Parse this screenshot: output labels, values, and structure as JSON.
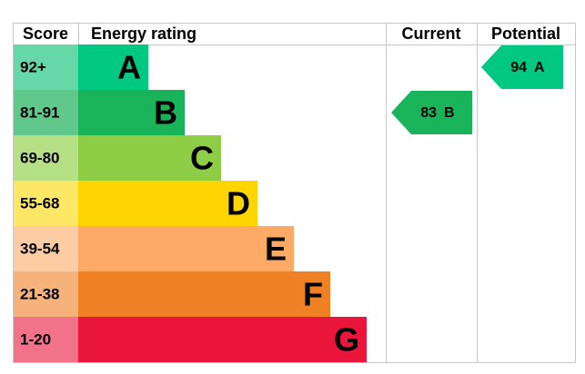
{
  "header": {
    "score": "Score",
    "rating": "Energy rating",
    "current": "Current",
    "potential": "Potential"
  },
  "bands": [
    {
      "score": "92+",
      "letter": "A",
      "color": "#00c781",
      "score_color": "#66d8a8"
    },
    {
      "score": "81-91",
      "letter": "B",
      "color": "#19b459",
      "score_color": "#5fc88a"
    },
    {
      "score": "69-80",
      "letter": "C",
      "color": "#8dce46",
      "score_color": "#b6e085"
    },
    {
      "score": "55-68",
      "letter": "D",
      "color": "#ffd500",
      "score_color": "#ffe766"
    },
    {
      "score": "39-54",
      "letter": "E",
      "color": "#fcaa65",
      "score_color": "#fdcca3"
    },
    {
      "score": "21-38",
      "letter": "F",
      "color": "#ef8023",
      "score_color": "#f5b37b"
    },
    {
      "score": "1-20",
      "letter": "G",
      "color": "#e9153b",
      "score_color": "#f27389"
    }
  ],
  "current": {
    "value": 83,
    "letter": "B"
  },
  "potential": {
    "value": 94,
    "letter": "A"
  }
}
